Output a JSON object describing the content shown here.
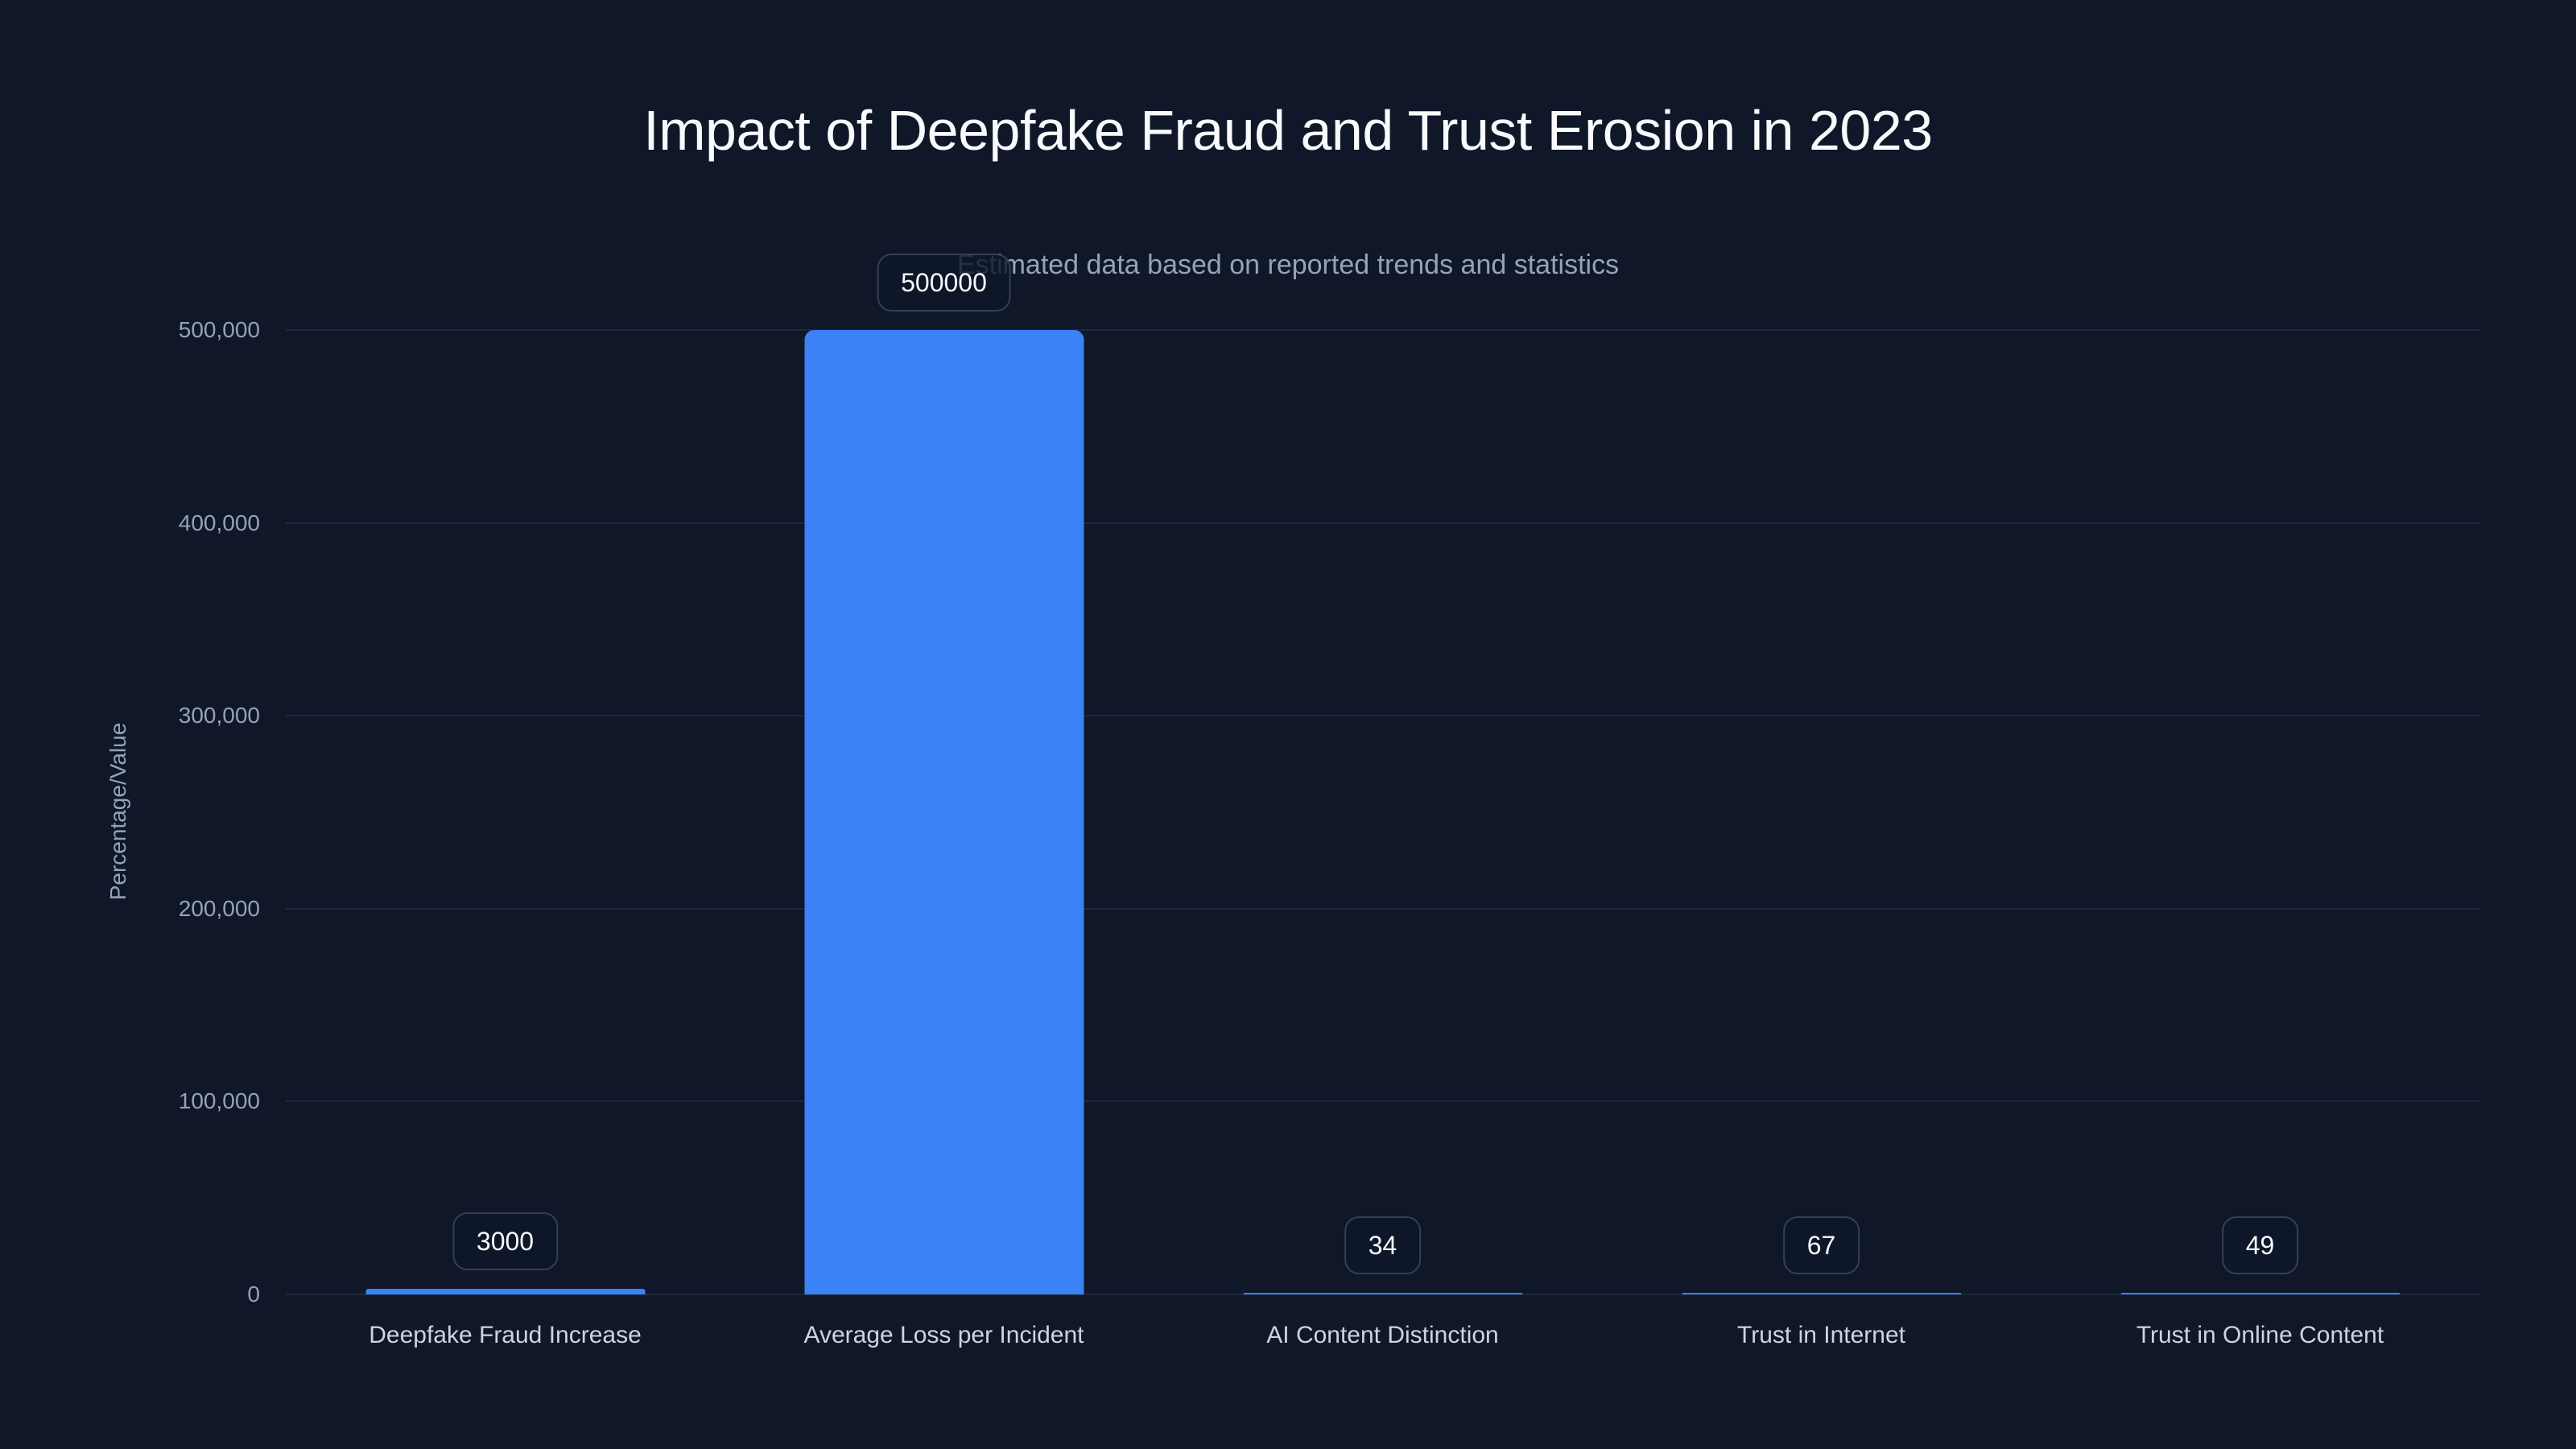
{
  "chart": {
    "title": "Impact of Deepfake Fraud and Trust Erosion in 2023",
    "subtitle": "Estimated data based on reported trends and statistics",
    "ylabel": "Percentage/Value",
    "yticks": [
      {
        "value": 0,
        "label": "0"
      },
      {
        "value": 100000,
        "label": "100,000"
      },
      {
        "value": 200000,
        "label": "200,000"
      },
      {
        "value": 300000,
        "label": "300,000"
      },
      {
        "value": 400000,
        "label": "400,000"
      },
      {
        "value": 500000,
        "label": "500,000"
      }
    ],
    "bars": [
      {
        "category": "Deepfake Fraud Increase",
        "value": 3000,
        "label": "3000"
      },
      {
        "category": "Average Loss per Incident",
        "value": 500000,
        "label": "500000"
      },
      {
        "category": "AI Content Distinction",
        "value": 34,
        "label": "34"
      },
      {
        "category": "Trust in Internet",
        "value": 67,
        "label": "67"
      },
      {
        "category": "Trust in Online Content",
        "value": 49,
        "label": "49"
      }
    ],
    "colors": {
      "background": "#0f1729",
      "bar": "#3b82f6",
      "grid": "#1e293b",
      "title": "#f8fafc",
      "axis_text": "#94a3b8",
      "category_text": "#cbd5e1"
    }
  },
  "chart_data": {
    "type": "bar",
    "title": "Impact of Deepfake Fraud and Trust Erosion in 2023",
    "subtitle": "Estimated data based on reported trends and statistics",
    "categories": [
      "Deepfake Fraud Increase",
      "Average Loss per Incident",
      "AI Content Distinction",
      "Trust in Internet",
      "Trust in Online Content"
    ],
    "values": [
      3000,
      500000,
      34,
      67,
      49
    ],
    "data_labels": [
      "3000",
      "500000",
      "34",
      "67",
      "49"
    ],
    "xlabel": "",
    "ylabel": "Percentage/Value",
    "ylim": [
      0,
      500000
    ],
    "yticks": [
      0,
      100000,
      200000,
      300000,
      400000,
      500000
    ],
    "ytick_labels": [
      "0",
      "100,000",
      "200,000",
      "300,000",
      "400,000",
      "500,000"
    ],
    "grid": {
      "horizontal": true,
      "vertical": false
    },
    "legend": null,
    "bar_color": "#3b82f6"
  }
}
